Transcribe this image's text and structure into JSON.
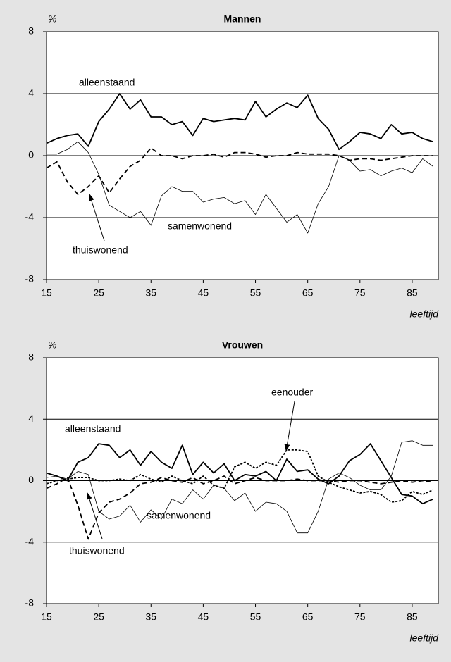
{
  "chart_data": [
    {
      "type": "line",
      "title": "Mannen",
      "ylabel": "%",
      "xlabel": "leeftijd",
      "x": [
        15,
        17,
        19,
        21,
        23,
        25,
        27,
        29,
        31,
        33,
        35,
        37,
        39,
        41,
        43,
        45,
        47,
        49,
        51,
        53,
        55,
        57,
        59,
        61,
        63,
        65,
        67,
        69,
        71,
        73,
        75,
        77,
        79,
        81,
        83,
        85,
        87,
        89
      ],
      "xlim": [
        15,
        90
      ],
      "xticks": [
        15,
        25,
        35,
        45,
        55,
        65,
        75,
        85
      ],
      "ylim": [
        -8,
        8
      ],
      "yticks": [
        -8,
        -4,
        0,
        4,
        8
      ],
      "grid": true,
      "series": [
        {
          "name": "alleenstaand",
          "color": "#000000",
          "style": "solid",
          "weight": "bold",
          "values": [
            0.8,
            1.1,
            1.3,
            1.4,
            0.6,
            2.2,
            3.0,
            4.0,
            3.0,
            3.6,
            2.5,
            2.5,
            2.0,
            2.2,
            1.3,
            2.4,
            2.2,
            2.3,
            2.4,
            2.3,
            3.5,
            2.5,
            3.0,
            3.4,
            3.1,
            3.9,
            2.4,
            1.7,
            0.4,
            0.9,
            1.5,
            1.4,
            1.1,
            2.0,
            1.4,
            1.5,
            1.1,
            0.9
          ]
        },
        {
          "name": "samenwonend",
          "color": "#000000",
          "style": "solid",
          "weight": "thin",
          "values": [
            0.1,
            0.1,
            0.4,
            0.9,
            0.2,
            -1.2,
            -3.2,
            -3.6,
            -4.0,
            -3.6,
            -4.5,
            -2.6,
            -2.0,
            -2.3,
            -2.3,
            -3.0,
            -2.8,
            -2.7,
            -3.1,
            -2.9,
            -3.8,
            -2.5,
            -3.4,
            -4.3,
            -3.8,
            -5.0,
            -3.1,
            -2.0,
            0.0,
            -0.3,
            -1.0,
            -0.9,
            -1.3,
            -1.0,
            -0.8,
            -1.1,
            -0.2,
            -0.7
          ]
        },
        {
          "name": "thuiswonend",
          "color": "#000000",
          "style": "dashed",
          "weight": "bold",
          "values": [
            -0.8,
            -0.4,
            -1.7,
            -2.5,
            -2.0,
            -1.3,
            -2.4,
            -1.5,
            -0.7,
            -0.3,
            0.5,
            0.0,
            0.0,
            -0.2,
            0.0,
            0.0,
            0.1,
            -0.1,
            0.2,
            0.2,
            0.1,
            -0.1,
            0.0,
            0.0,
            0.2,
            0.1,
            0.1,
            0.1,
            0.0,
            -0.3,
            -0.2,
            -0.2,
            -0.3,
            -0.2,
            -0.1,
            0.0,
            0.0,
            0.0
          ]
        }
      ]
    },
    {
      "type": "line",
      "title": "Vrouwen",
      "ylabel": "%",
      "xlabel": "leeftijd",
      "x": [
        15,
        17,
        19,
        21,
        23,
        25,
        27,
        29,
        31,
        33,
        35,
        37,
        39,
        41,
        43,
        45,
        47,
        49,
        51,
        53,
        55,
        57,
        59,
        61,
        63,
        65,
        67,
        69,
        71,
        73,
        75,
        77,
        79,
        81,
        83,
        85,
        87,
        89
      ],
      "xlim": [
        15,
        90
      ],
      "xticks": [
        15,
        25,
        35,
        45,
        55,
        65,
        75,
        85
      ],
      "ylim": [
        -8,
        8
      ],
      "yticks": [
        -8,
        -4,
        0,
        4,
        8
      ],
      "grid": true,
      "series": [
        {
          "name": "alleenstaand",
          "color": "#000000",
          "style": "solid",
          "weight": "bold",
          "values": [
            0.5,
            0.3,
            0.0,
            1.2,
            1.5,
            2.4,
            2.3,
            1.5,
            2.0,
            1.0,
            1.9,
            1.2,
            0.8,
            2.3,
            0.4,
            1.2,
            0.5,
            1.1,
            0.0,
            0.4,
            0.3,
            0.6,
            0.0,
            1.4,
            0.6,
            0.7,
            0.1,
            -0.2,
            0.3,
            1.3,
            1.7,
            2.4,
            1.3,
            0.2,
            -0.9,
            -1.0,
            -1.5,
            -1.2
          ]
        },
        {
          "name": "samenwonend",
          "color": "#000000",
          "style": "solid",
          "weight": "thin",
          "values": [
            0.2,
            0.3,
            0.1,
            0.6,
            0.4,
            -2.0,
            -2.5,
            -2.3,
            -1.6,
            -2.7,
            -1.9,
            -2.5,
            -1.2,
            -1.5,
            -0.6,
            -1.2,
            -0.3,
            -0.5,
            -1.3,
            -0.8,
            -2.0,
            -1.4,
            -1.5,
            -2.0,
            -3.4,
            -3.4,
            -2.0,
            0.1,
            0.5,
            0.2,
            -0.3,
            -0.6,
            -0.6,
            0.3,
            2.5,
            2.6,
            2.3,
            2.3
          ]
        },
        {
          "name": "thuiswonend",
          "color": "#000000",
          "style": "dashed",
          "weight": "bold",
          "values": [
            -0.5,
            -0.2,
            0.2,
            -1.6,
            -3.8,
            -2.1,
            -1.4,
            -1.2,
            -0.8,
            -0.2,
            -0.1,
            0.2,
            0.0,
            -0.1,
            0.2,
            -0.2,
            0.0,
            0.3,
            -0.2,
            0.0,
            0.2,
            0.0,
            0.0,
            0.0,
            0.1,
            0.0,
            0.0,
            0.0,
            -0.1,
            0.0,
            0.0,
            -0.1,
            -0.2,
            -0.1,
            0.0,
            -0.1,
            0.0,
            -0.1
          ]
        },
        {
          "name": "eenouder",
          "color": "#000000",
          "style": "dotted",
          "weight": "bold",
          "values": [
            -0.2,
            0.0,
            0.1,
            0.2,
            0.2,
            0.0,
            0.0,
            0.1,
            0.0,
            0.4,
            0.1,
            -0.1,
            0.3,
            0.0,
            -0.2,
            0.3,
            -0.3,
            -0.5,
            0.9,
            1.2,
            0.8,
            1.2,
            1.0,
            2.0,
            2.0,
            1.9,
            0.3,
            -0.1,
            -0.4,
            -0.6,
            -0.8,
            -0.7,
            -0.9,
            -1.4,
            -1.3,
            -0.7,
            -0.9,
            -0.6
          ]
        }
      ]
    }
  ]
}
